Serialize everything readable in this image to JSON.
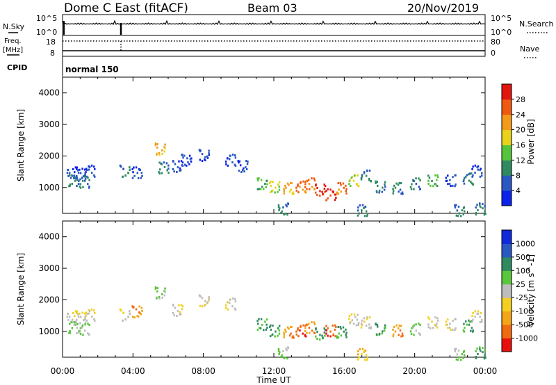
{
  "header": {
    "station": "Dome C East (fitACF)",
    "beam": "Beam 03",
    "date": "20/Nov/2019"
  },
  "status": {
    "nsky_label": "N.Sky",
    "nsearch_label": "N.Search",
    "freq_label": "Freq.",
    "freq_unit": "[MHz]",
    "nave_label": "Nave",
    "cpid_label": "CPID",
    "cpid_value": "normal 150",
    "noise_tick_top": "10^5",
    "noise_tick_bottom": "10^0",
    "freq_tick_top": "18",
    "freq_tick_bottom": "8",
    "nave_tick_top": "80",
    "nave_tick_bottom": "0"
  },
  "colors": {
    "power": [
      "#0b22ea",
      "#2a58c2",
      "#2f8a60",
      "#56c43c",
      "#e8d21c",
      "#f39a1a",
      "#f05a10",
      "#e2160f"
    ],
    "velocity": [
      "#e8100c",
      "#f06a10",
      "#f3a418",
      "#f3d020",
      "#bdbdbd",
      "#59c63b",
      "#2f8a60",
      "#2a58c2",
      "#0f2adb"
    ]
  },
  "chart_data": [
    {
      "type": "heatmap",
      "ylabel": "Slant Range [km]",
      "xlabel": "",
      "ylim": [
        180,
        4500
      ],
      "xlim": [
        0,
        24
      ],
      "yticks": [
        "1000",
        "2000",
        "3000",
        "4000"
      ],
      "xticks": [],
      "colorbar": {
        "label": "Power [dB]",
        "range": [
          0,
          32
        ],
        "ticks": [
          "4",
          "8",
          "12",
          "16",
          "20",
          "24",
          "28"
        ]
      },
      "cells": [
        [
          0.5,
          1500,
          1
        ],
        [
          1.0,
          1450,
          1
        ],
        [
          1.5,
          1550,
          1
        ],
        [
          0.6,
          1250,
          2
        ],
        [
          1.2,
          1200,
          2
        ],
        [
          3.5,
          1550,
          2
        ],
        [
          4.2,
          1500,
          1
        ],
        [
          5.5,
          2250,
          5
        ],
        [
          5.7,
          1650,
          2
        ],
        [
          6.5,
          1700,
          1
        ],
        [
          7.0,
          1900,
          1
        ],
        [
          8.0,
          2050,
          1
        ],
        [
          9.5,
          1900,
          1
        ],
        [
          10.2,
          1700,
          1
        ],
        [
          11.3,
          1150,
          3
        ],
        [
          12.0,
          1050,
          4
        ],
        [
          12.8,
          1000,
          5
        ],
        [
          13.5,
          1050,
          6
        ],
        [
          14.0,
          1150,
          6
        ],
        [
          14.6,
          950,
          7
        ],
        [
          15.2,
          800,
          7
        ],
        [
          15.8,
          1000,
          6
        ],
        [
          16.5,
          1250,
          4
        ],
        [
          17.2,
          1400,
          2
        ],
        [
          18.0,
          1050,
          2
        ],
        [
          19.0,
          1000,
          2
        ],
        [
          20.0,
          1150,
          2
        ],
        [
          21.0,
          1250,
          3
        ],
        [
          22.0,
          1250,
          1
        ],
        [
          23.0,
          1300,
          2
        ],
        [
          23.5,
          1550,
          1
        ],
        [
          23.7,
          350,
          2
        ],
        [
          22.5,
          300,
          2
        ],
        [
          12.5,
          350,
          2
        ],
        [
          17.0,
          300,
          2
        ]
      ]
    },
    {
      "type": "heatmap",
      "ylabel": "Slant Range [km]",
      "xlabel": "Time UT",
      "ylim": [
        180,
        4500
      ],
      "xlim": [
        0,
        24
      ],
      "yticks": [
        "1000",
        "2000",
        "3000",
        "4000"
      ],
      "xticks": [
        "00:00",
        "04:00",
        "08:00",
        "12:00",
        "16:00",
        "20:00",
        "00:00"
      ],
      "colorbar": {
        "label": "Velocity [m s^-1]",
        "range": [
          -1200,
          1200
        ],
        "ticks": [
          "1000",
          "500",
          "100",
          "25",
          "-25",
          "-100",
          "-500",
          "-1000"
        ]
      },
      "cells": [
        [
          0.5,
          1500,
          4
        ],
        [
          1.0,
          1450,
          4
        ],
        [
          1.5,
          1550,
          4
        ],
        [
          0.6,
          1150,
          5
        ],
        [
          1.2,
          1100,
          5
        ],
        [
          3.5,
          1550,
          4
        ],
        [
          4.2,
          1650,
          2
        ],
        [
          5.5,
          2250,
          5
        ],
        [
          6.5,
          1700,
          4
        ],
        [
          8.0,
          2000,
          4
        ],
        [
          9.5,
          1900,
          4
        ],
        [
          11.3,
          1250,
          6
        ],
        [
          12.0,
          1050,
          6
        ],
        [
          12.8,
          1000,
          2
        ],
        [
          13.5,
          1050,
          1
        ],
        [
          14.0,
          1150,
          2
        ],
        [
          14.6,
          950,
          6
        ],
        [
          15.2,
          1050,
          1
        ],
        [
          15.8,
          1000,
          6
        ],
        [
          16.5,
          1400,
          4
        ],
        [
          17.2,
          1300,
          4
        ],
        [
          18.0,
          1100,
          6
        ],
        [
          19.0,
          1050,
          2
        ],
        [
          20.0,
          1100,
          5
        ],
        [
          21.0,
          1300,
          4
        ],
        [
          22.0,
          1250,
          4
        ],
        [
          23.0,
          1200,
          6
        ],
        [
          23.5,
          1500,
          4
        ],
        [
          23.7,
          350,
          6
        ],
        [
          22.5,
          300,
          5
        ],
        [
          12.5,
          350,
          5
        ],
        [
          17.0,
          300,
          3
        ]
      ]
    }
  ]
}
